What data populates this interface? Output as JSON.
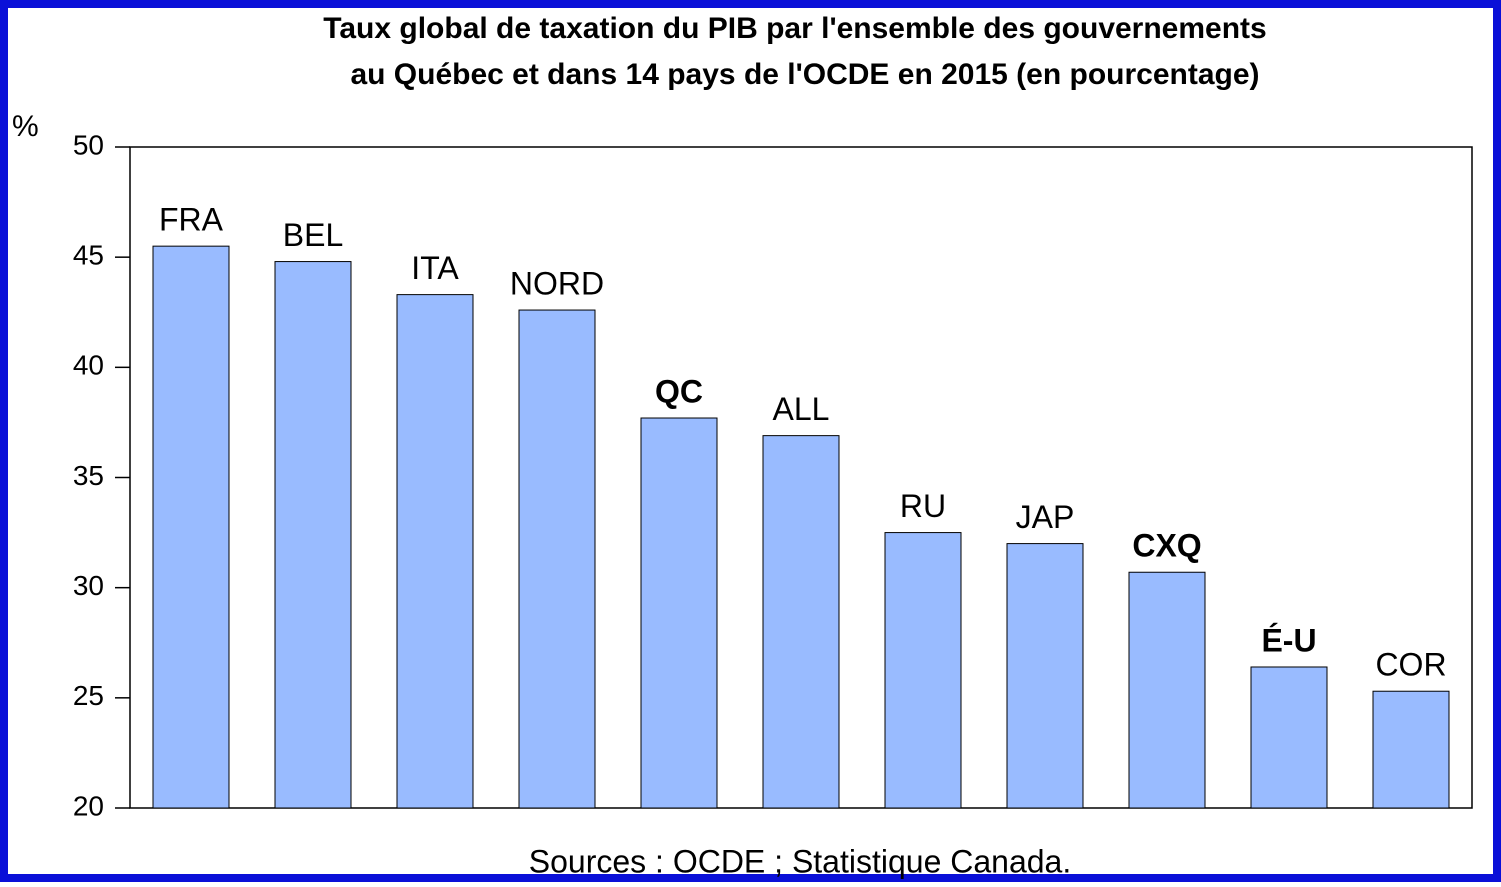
{
  "chart_data": {
    "type": "bar",
    "title": [
      "Taux global de taxation du PIB par l'ensemble des gouvernements",
      "au Québec et dans 14 pays de l'OCDE en 2015 (en pourcentage)"
    ],
    "y_label": "%",
    "source": "Sources : OCDE ; Statistique Canada.",
    "categories": [
      "FRA",
      "BEL",
      "ITA",
      "NORD",
      "QC",
      "ALL",
      "RU",
      "JAP",
      "CXQ",
      "É-U",
      "COR"
    ],
    "bold": [
      false,
      false,
      false,
      false,
      true,
      false,
      false,
      false,
      true,
      true,
      false
    ],
    "values": [
      45.5,
      44.8,
      43.3,
      42.6,
      37.7,
      36.9,
      32.5,
      32.0,
      30.7,
      26.4,
      25.3
    ],
    "color": "#99bbff",
    "ylim": [
      20,
      50
    ],
    "yticks": [
      20,
      25,
      30,
      35,
      40,
      45,
      50
    ]
  }
}
